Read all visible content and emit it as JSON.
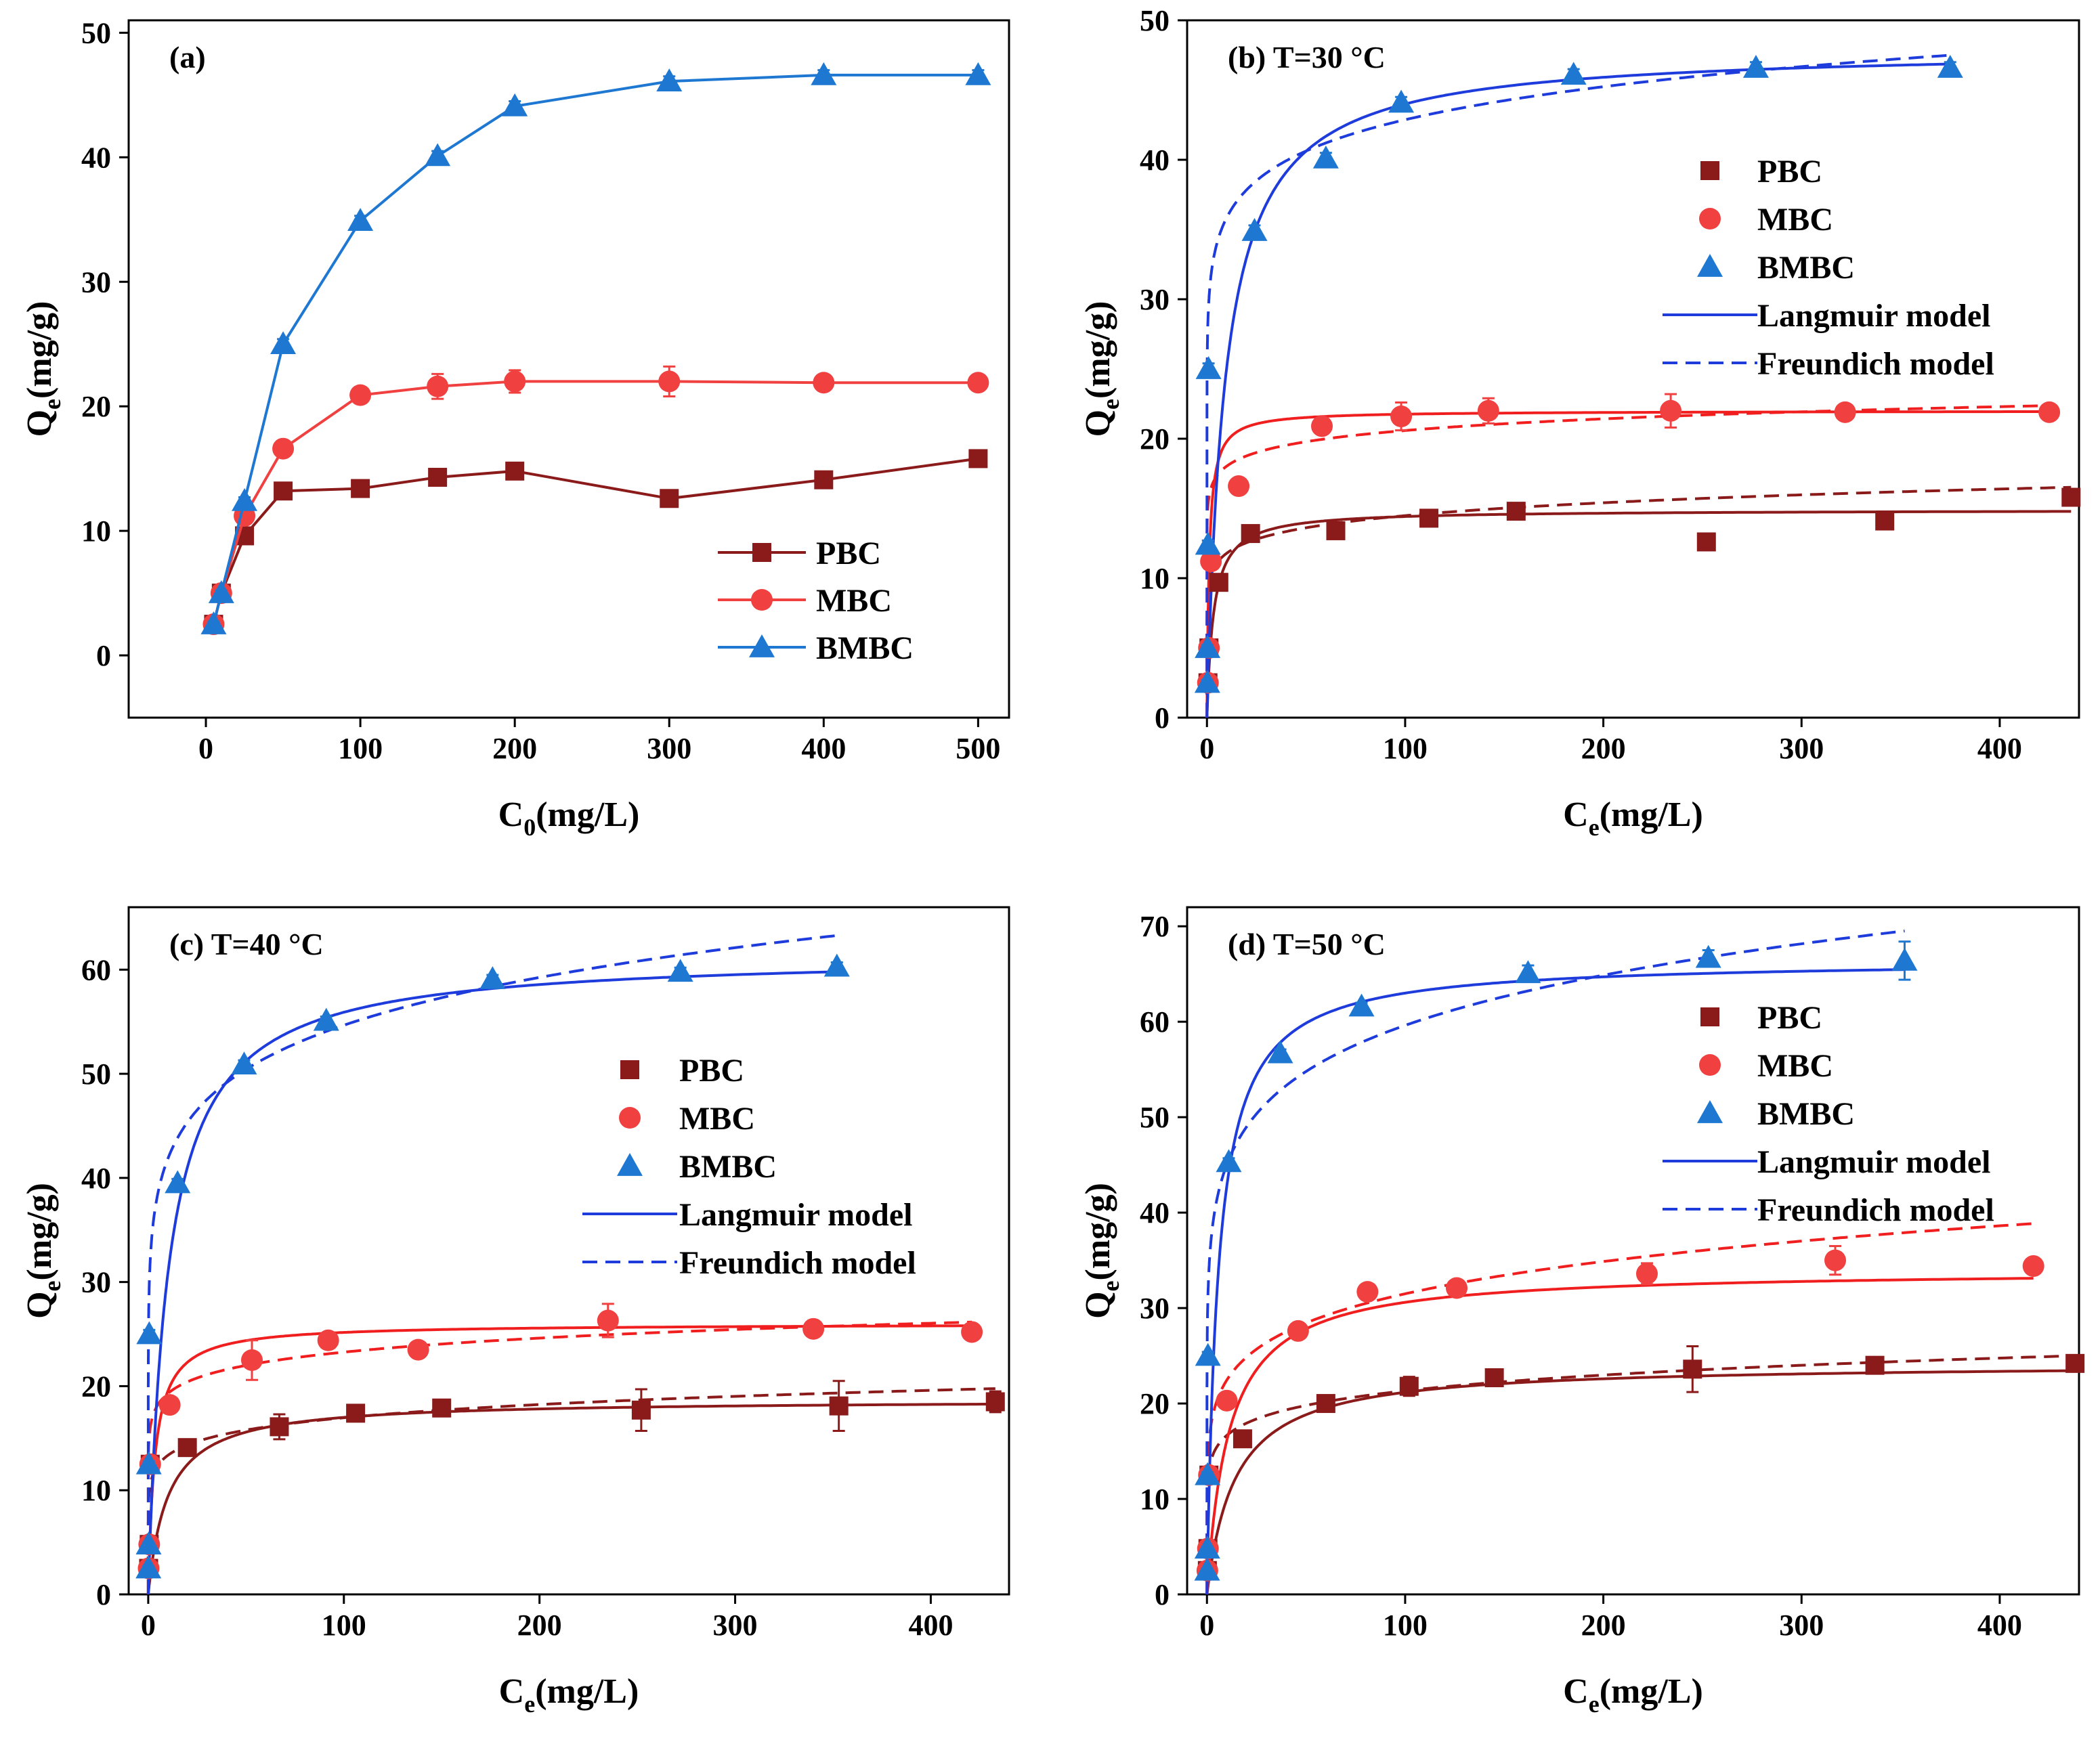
{
  "figure": {
    "background": "#ffffff"
  },
  "chart_data": [
    {
      "panel": "a",
      "type": "line",
      "title": "(a)",
      "xlabel": "C",
      "xlabel_sub": "0",
      "xlabel_suffix": "(mg/L)",
      "ylabel": "Q",
      "ylabel_sub": "e",
      "ylabel_suffix": "(mg/g)",
      "xlim": [
        -50,
        520
      ],
      "ylim": [
        -5,
        51
      ],
      "xticks": [
        0,
        100,
        200,
        300,
        400,
        500
      ],
      "yticks": [
        0,
        10,
        20,
        30,
        40,
        50
      ],
      "grid": false,
      "legend": {
        "position": "bottom-right",
        "entries": [
          {
            "label": "PBC",
            "series": "PBC"
          },
          {
            "label": "MBC",
            "series": "MBC"
          },
          {
            "label": "BMBC",
            "series": "BMBC"
          }
        ]
      },
      "series": [
        {
          "name": "PBC",
          "color": "#8B1A1A",
          "marker": "square",
          "x": [
            5,
            10,
            25,
            50,
            100,
            150,
            200,
            300,
            400,
            500
          ],
          "y": [
            2.5,
            5.0,
            9.6,
            13.2,
            13.4,
            14.3,
            14.8,
            12.6,
            14.1,
            15.8
          ],
          "err": [
            0.2,
            0.2,
            0.3,
            0.4,
            0.3,
            0.4,
            0.4,
            0.3,
            0.5,
            0.4
          ]
        },
        {
          "name": "MBC",
          "color": "#F04040",
          "marker": "circle",
          "x": [
            5,
            10,
            25,
            50,
            100,
            150,
            200,
            300,
            400,
            500
          ],
          "y": [
            2.5,
            5.0,
            11.2,
            16.6,
            20.9,
            21.6,
            22.0,
            22.0,
            21.9,
            21.9
          ],
          "err": [
            0.2,
            0.2,
            0.4,
            0.4,
            0.5,
            1.0,
            0.9,
            1.2,
            0.4,
            0.3
          ]
        },
        {
          "name": "BMBC",
          "color": "#1E78D2",
          "marker": "triangle",
          "x": [
            5,
            10,
            25,
            50,
            100,
            150,
            200,
            300,
            400,
            500
          ],
          "y": [
            2.5,
            5.0,
            12.4,
            25.0,
            34.9,
            40.1,
            44.1,
            46.1,
            46.6,
            46.6
          ],
          "err": [
            0.2,
            0.2,
            0.3,
            0.4,
            0.4,
            0.4,
            0.4,
            0.4,
            0.4,
            0.4
          ]
        }
      ]
    },
    {
      "panel": "b",
      "type": "scatter",
      "title": "(b) T=30 °C",
      "xlabel": "C",
      "xlabel_sub": "e",
      "xlabel_suffix": "(mg/L)",
      "ylabel": "Q",
      "ylabel_sub": "e",
      "ylabel_suffix": "(mg/g)",
      "xlim": [
        -10,
        440
      ],
      "ylim": [
        0,
        50
      ],
      "xticks": [
        0,
        100,
        200,
        300,
        400
      ],
      "yticks": [
        0,
        10,
        20,
        30,
        40,
        50
      ],
      "grid": false,
      "legend": {
        "position": "middle-right",
        "entries": [
          {
            "label": "PBC",
            "series": "PBC"
          },
          {
            "label": "MBC",
            "series": "MBC"
          },
          {
            "label": "BMBC",
            "series": "BMBC"
          },
          {
            "label": "Langmuir model",
            "line": "solid",
            "color": "#1E3CDC"
          },
          {
            "label": "Freundich model",
            "line": "dashed",
            "color": "#1E3CDC"
          }
        ]
      },
      "series": [
        {
          "name": "PBC",
          "color": "#8B1A1A",
          "marker": "square",
          "x": [
            0.5,
            1,
            6,
            22,
            65,
            112,
            156,
            252,
            342,
            436
          ],
          "y": [
            2.5,
            5.0,
            9.7,
            13.2,
            13.4,
            14.3,
            14.8,
            12.6,
            14.1,
            15.8
          ],
          "err": [
            0.2,
            0.2,
            0.3,
            0.4,
            0.3,
            0.4,
            0.4,
            0.3,
            0.5,
            0.4
          ]
        },
        {
          "name": "MBC",
          "color": "#F04040",
          "marker": "circle",
          "x": [
            0.5,
            1,
            2,
            16,
            58,
            98,
            142,
            234,
            322,
            425
          ],
          "y": [
            2.5,
            5.0,
            11.2,
            16.6,
            20.9,
            21.6,
            22.0,
            22.0,
            21.9,
            21.9
          ],
          "err": [
            0.2,
            0.2,
            0.4,
            0.4,
            0.5,
            1.0,
            0.9,
            1.2,
            0.4,
            0.3
          ]
        },
        {
          "name": "BMBC",
          "color": "#1E78D2",
          "marker": "triangle",
          "x": [
            0.2,
            0.3,
            0.5,
            0.8,
            24,
            60,
            98,
            185,
            277,
            375
          ],
          "y": [
            2.5,
            5.0,
            12.4,
            25.0,
            34.9,
            40.1,
            44.1,
            46.1,
            46.6,
            46.6
          ],
          "err": [
            0.2,
            0.2,
            0.3,
            0.4,
            0.4,
            0.4,
            0.4,
            0.4,
            0.4,
            0.4
          ]
        }
      ],
      "fits": [
        {
          "series": "PBC",
          "model": "Langmuir",
          "style": "solid",
          "color": "#8B1A1A",
          "qmax": 14.9,
          "KL": 0.3,
          "xmax": 436
        },
        {
          "series": "PBC",
          "model": "Freundich",
          "style": "dashed",
          "color": "#8B1A1A",
          "KF": 9.6,
          "n": 11.2,
          "xmax": 436
        },
        {
          "series": "MBC",
          "model": "Langmuir",
          "style": "solid",
          "color": "#F01E1E",
          "qmax": 22.0,
          "KL": 0.9,
          "xmax": 425
        },
        {
          "series": "MBC",
          "model": "Freundich",
          "style": "dashed",
          "color": "#F01E1E",
          "KF": 15.8,
          "n": 17.4,
          "xmax": 425
        },
        {
          "series": "BMBC",
          "model": "Langmuir",
          "style": "solid",
          "color": "#1E3CDC",
          "qmax": 48.0,
          "KL": 0.11,
          "xmax": 375
        },
        {
          "series": "BMBC",
          "model": "Freundich",
          "style": "dashed",
          "color": "#1E3CDC",
          "KF": 30.0,
          "n": 12.9,
          "xmax": 375
        }
      ]
    },
    {
      "panel": "c",
      "type": "scatter",
      "title": "(c) T=40 °C",
      "xlabel": "C",
      "xlabel_sub": "e",
      "xlabel_suffix": "(mg/L)",
      "ylabel": "Q",
      "ylabel_sub": "e",
      "ylabel_suffix": "(mg/g)",
      "xlim": [
        -10,
        440
      ],
      "ylim": [
        0,
        66
      ],
      "xticks": [
        0,
        100,
        200,
        300,
        400
      ],
      "yticks": [
        0,
        10,
        20,
        30,
        40,
        50,
        60
      ],
      "grid": false,
      "legend": {
        "position": "middle-right",
        "entries": [
          {
            "label": "PBC",
            "series": "PBC"
          },
          {
            "label": "MBC",
            "series": "MBC"
          },
          {
            "label": "BMBC",
            "series": "BMBC"
          },
          {
            "label": "Langmuir model",
            "line": "solid",
            "color": "#1E3CDC"
          },
          {
            "label": "Freundich model",
            "line": "dashed",
            "color": "#1E3CDC"
          }
        ]
      },
      "series": [
        {
          "name": "PBC",
          "color": "#8B1A1A",
          "marker": "square",
          "x": [
            0.2,
            0.5,
            1,
            20,
            67,
            106,
            150,
            252,
            353,
            433
          ],
          "y": [
            2.5,
            4.8,
            12.5,
            14.1,
            16.1,
            17.4,
            17.9,
            17.7,
            18.1,
            18.5
          ],
          "err": [
            0.2,
            0.2,
            0.3,
            0.4,
            1.2,
            0.5,
            0.5,
            2.0,
            2.4,
            1.0
          ]
        },
        {
          "name": "MBC",
          "color": "#F04040",
          "marker": "circle",
          "x": [
            0.2,
            0.5,
            1,
            11,
            53,
            92,
            138,
            235,
            340,
            421
          ],
          "y": [
            2.5,
            4.8,
            12.5,
            18.2,
            22.5,
            24.4,
            23.5,
            26.3,
            25.5,
            25.2
          ],
          "err": [
            0.2,
            0.2,
            0.3,
            0.4,
            1.9,
            0.5,
            0.4,
            1.6,
            0.4,
            0.4
          ]
        },
        {
          "name": "BMBC",
          "color": "#1E78D2",
          "marker": "triangle",
          "x": [
            0.1,
            0.2,
            0.3,
            0.5,
            15,
            49,
            91,
            176,
            272,
            352
          ],
          "y": [
            2.5,
            4.8,
            12.5,
            25.0,
            39.5,
            50.9,
            55.1,
            59.1,
            59.8,
            60.3
          ],
          "err": [
            0.2,
            0.2,
            0.3,
            0.4,
            0.4,
            0.4,
            0.4,
            0.4,
            0.4,
            0.4
          ]
        }
      ],
      "fits": [
        {
          "series": "PBC",
          "model": "Langmuir",
          "style": "solid",
          "color": "#8B1A1A",
          "qmax": 18.7,
          "KL": 0.1,
          "xmax": 433
        },
        {
          "series": "PBC",
          "model": "Freundich",
          "style": "dashed",
          "color": "#8B1A1A",
          "KF": 10.5,
          "n": 9.6,
          "xmax": 433
        },
        {
          "series": "MBC",
          "model": "Langmuir",
          "style": "solid",
          "color": "#F01E1E",
          "qmax": 26.0,
          "KL": 0.3,
          "xmax": 421
        },
        {
          "series": "MBC",
          "model": "Freundich",
          "style": "dashed",
          "color": "#F01E1E",
          "KF": 16.0,
          "n": 12.3,
          "xmax": 421
        },
        {
          "series": "BMBC",
          "model": "Langmuir",
          "style": "solid",
          "color": "#1E3CDC",
          "qmax": 61.5,
          "KL": 0.1,
          "xmax": 352
        },
        {
          "series": "BMBC",
          "model": "Freundich",
          "style": "dashed",
          "color": "#1E3CDC",
          "KF": 32.0,
          "n": 8.6,
          "xmax": 352
        }
      ]
    },
    {
      "panel": "d",
      "type": "scatter",
      "title": "(d) T=50 °C",
      "xlabel": "C",
      "xlabel_sub": "e",
      "xlabel_suffix": "(mg/L)",
      "ylabel": "Q",
      "ylabel_sub": "e",
      "ylabel_suffix": "(mg/g)",
      "xlim": [
        -10,
        440
      ],
      "ylim": [
        0,
        72
      ],
      "xticks": [
        0,
        100,
        200,
        300,
        400
      ],
      "yticks": [
        0,
        10,
        20,
        30,
        40,
        50,
        60,
        70
      ],
      "grid": false,
      "legend": {
        "position": "top-right",
        "entries": [
          {
            "label": "PBC",
            "series": "PBC"
          },
          {
            "label": "MBC",
            "series": "MBC"
          },
          {
            "label": "BMBC",
            "series": "BMBC"
          },
          {
            "label": "Langmuir model",
            "line": "solid",
            "color": "#1E3CDC"
          },
          {
            "label": "Freundich model",
            "line": "dashed",
            "color": "#1E3CDC"
          }
        ]
      },
      "series": [
        {
          "name": "PBC",
          "color": "#8B1A1A",
          "marker": "square",
          "x": [
            0.2,
            0.5,
            1,
            18,
            60,
            102,
            145,
            245,
            337,
            438
          ],
          "y": [
            2.5,
            4.8,
            12.5,
            16.3,
            20.0,
            21.8,
            22.7,
            23.6,
            24.0,
            24.2
          ],
          "err": [
            0.2,
            0.2,
            0.3,
            0.4,
            0.5,
            1.0,
            0.5,
            2.4,
            0.5,
            0.5
          ]
        },
        {
          "name": "MBC",
          "color": "#F04040",
          "marker": "circle",
          "x": [
            0.2,
            0.5,
            1,
            10,
            46,
            81,
            126,
            222,
            317,
            417
          ],
          "y": [
            2.5,
            4.8,
            12.5,
            20.3,
            27.6,
            31.7,
            32.1,
            33.6,
            35.0,
            34.4
          ],
          "err": [
            0.2,
            0.2,
            0.3,
            0.4,
            0.5,
            0.5,
            0.5,
            1.1,
            1.5,
            0.5
          ]
        },
        {
          "name": "BMBC",
          "color": "#1E78D2",
          "marker": "triangle",
          "x": [
            0.1,
            0.2,
            0.3,
            0.5,
            11,
            37,
            78,
            162,
            253,
            352
          ],
          "y": [
            2.5,
            4.8,
            12.5,
            25.0,
            45.3,
            56.7,
            61.6,
            65.1,
            66.7,
            66.4
          ],
          "err": [
            0.2,
            0.2,
            0.3,
            0.4,
            0.4,
            0.4,
            0.4,
            0.8,
            0.8,
            2.0
          ]
        }
      ],
      "fits": [
        {
          "series": "PBC",
          "model": "Langmuir",
          "style": "solid",
          "color": "#8B1A1A",
          "qmax": 24.2,
          "KL": 0.07,
          "xmax": 438
        },
        {
          "series": "PBC",
          "model": "Freundich",
          "style": "dashed",
          "color": "#8B1A1A",
          "KF": 13.0,
          "n": 9.3,
          "xmax": 438
        },
        {
          "series": "MBC",
          "model": "Langmuir",
          "style": "solid",
          "color": "#F01E1E",
          "qmax": 34.0,
          "KL": 0.09,
          "xmax": 417
        },
        {
          "series": "MBC",
          "model": "Freundich",
          "style": "dashed",
          "color": "#F01E1E",
          "KF": 16.0,
          "n": 6.8,
          "xmax": 417
        },
        {
          "series": "BMBC",
          "model": "Langmuir",
          "style": "solid",
          "color": "#1E3CDC",
          "qmax": 66.5,
          "KL": 0.18,
          "xmax": 352
        },
        {
          "series": "BMBC",
          "model": "Freundich",
          "style": "dashed",
          "color": "#1E3CDC",
          "KF": 34.0,
          "n": 8.2,
          "xmax": 352
        }
      ]
    }
  ]
}
